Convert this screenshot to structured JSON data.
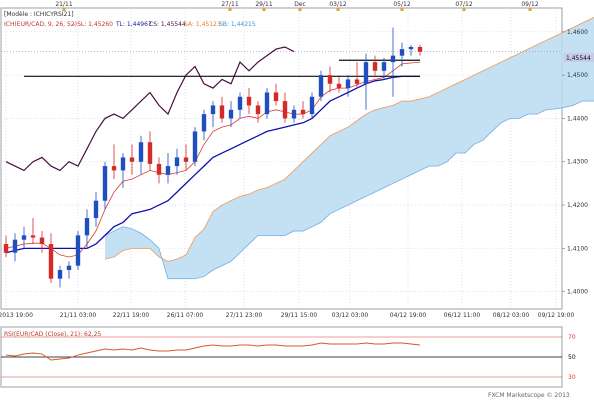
{
  "window": {
    "tab_label": "[Modèle : ICHICYRSI21]",
    "legend": {
      "instrument": "ICH(EUR/CAD, 9, 26, 52)",
      "sl": "- SL: 1,45260",
      "tl": "TL: 1,44967",
      "cs": "CS: 1,45544",
      "sa": "SA: 1,45123",
      "sb": "SB: 1,44215"
    },
    "rsi_legend": "RSI(EUR/CAD (Close), 21): 62,25",
    "watermark": "FXCM Marketscope © 2013",
    "price_tag": "1,45544"
  },
  "colors": {
    "background": "#ffffff",
    "plot_border": "#9aa0a6",
    "grid": "#c8cde3",
    "candle_bull": "#1f4fbf",
    "candle_bear": "#d62a2a",
    "tenkan_line": "#d93b3b",
    "kijun_line": "#1010b0",
    "chikou_line": "#4a0f3f",
    "cloud_fill": "#b9dcf1",
    "senkou_a": "#f0a060",
    "senkou_b": "#7fb3e6",
    "rsi_line": "#d8572a",
    "rsi_ref_mid": "#000000",
    "rsi_ref_band": "#d93b3b",
    "price_tag_bg": "#c8cbe8"
  },
  "chart_data": [
    {
      "type": "candlestick",
      "title": "[Modèle : ICHICYRSI21]",
      "ylim": [
        1.396,
        1.4655
      ],
      "y_ticks": [
        "1,4600",
        "1,4500",
        "1,4400",
        "1,4300",
        "1,4200",
        "1,4100",
        "1,4000"
      ],
      "top_dates": [
        "21/11",
        "27/11",
        "29/11",
        "Dec",
        "03/12",
        "05/12",
        "07/12",
        "09/12"
      ],
      "bottom_dates": [
        "18/11/2013 19:00",
        "21/11 03:00",
        "22/11 19:00",
        "26/11 07:00",
        "27/11 23:00",
        "29/11 15:00",
        "03/12 03:00",
        "04/12 19:00",
        "06/12 11:00",
        "08/12 03:00",
        "09/12 19:00"
      ],
      "horizontal_levels": [
        {
          "price": 1.45344,
          "from": 37,
          "to": 46
        },
        {
          "price": 1.44973,
          "from": 2,
          "to": 46
        }
      ],
      "candles": [
        {
          "o": 1.411,
          "h": 1.413,
          "l": 1.408,
          "c": 1.409
        },
        {
          "o": 1.409,
          "h": 1.4135,
          "l": 1.407,
          "c": 1.412
        },
        {
          "o": 1.412,
          "h": 1.415,
          "l": 1.41,
          "c": 1.413
        },
        {
          "o": 1.413,
          "h": 1.417,
          "l": 1.411,
          "c": 1.4125
        },
        {
          "o": 1.4125,
          "h": 1.414,
          "l": 1.409,
          "c": 1.411
        },
        {
          "o": 1.411,
          "h": 1.4135,
          "l": 1.402,
          "c": 1.403
        },
        {
          "o": 1.403,
          "h": 1.406,
          "l": 1.401,
          "c": 1.405
        },
        {
          "o": 1.405,
          "h": 1.407,
          "l": 1.403,
          "c": 1.406
        },
        {
          "o": 1.406,
          "h": 1.414,
          "l": 1.405,
          "c": 1.413
        },
        {
          "o": 1.413,
          "h": 1.419,
          "l": 1.41,
          "c": 1.417
        },
        {
          "o": 1.417,
          "h": 1.423,
          "l": 1.415,
          "c": 1.421
        },
        {
          "o": 1.421,
          "h": 1.43,
          "l": 1.419,
          "c": 1.429
        },
        {
          "o": 1.429,
          "h": 1.434,
          "l": 1.426,
          "c": 1.428
        },
        {
          "o": 1.428,
          "h": 1.432,
          "l": 1.424,
          "c": 1.431
        },
        {
          "o": 1.431,
          "h": 1.434,
          "l": 1.427,
          "c": 1.43
        },
        {
          "o": 1.43,
          "h": 1.436,
          "l": 1.427,
          "c": 1.4345
        },
        {
          "o": 1.4345,
          "h": 1.437,
          "l": 1.428,
          "c": 1.4295
        },
        {
          "o": 1.4295,
          "h": 1.431,
          "l": 1.425,
          "c": 1.427
        },
        {
          "o": 1.427,
          "h": 1.432,
          "l": 1.425,
          "c": 1.429
        },
        {
          "o": 1.429,
          "h": 1.433,
          "l": 1.427,
          "c": 1.431
        },
        {
          "o": 1.431,
          "h": 1.434,
          "l": 1.428,
          "c": 1.43
        },
        {
          "o": 1.43,
          "h": 1.438,
          "l": 1.429,
          "c": 1.437
        },
        {
          "o": 1.437,
          "h": 1.442,
          "l": 1.435,
          "c": 1.441
        },
        {
          "o": 1.441,
          "h": 1.444,
          "l": 1.438,
          "c": 1.443
        },
        {
          "o": 1.443,
          "h": 1.445,
          "l": 1.439,
          "c": 1.44
        },
        {
          "o": 1.44,
          "h": 1.444,
          "l": 1.438,
          "c": 1.442
        },
        {
          "o": 1.442,
          "h": 1.446,
          "l": 1.44,
          "c": 1.445
        },
        {
          "o": 1.445,
          "h": 1.447,
          "l": 1.441,
          "c": 1.443
        },
        {
          "o": 1.443,
          "h": 1.444,
          "l": 1.439,
          "c": 1.441
        },
        {
          "o": 1.441,
          "h": 1.447,
          "l": 1.44,
          "c": 1.446
        },
        {
          "o": 1.446,
          "h": 1.448,
          "l": 1.443,
          "c": 1.444
        },
        {
          "o": 1.444,
          "h": 1.446,
          "l": 1.439,
          "c": 1.44
        },
        {
          "o": 1.44,
          "h": 1.443,
          "l": 1.439,
          "c": 1.442
        },
        {
          "o": 1.442,
          "h": 1.444,
          "l": 1.44,
          "c": 1.441
        },
        {
          "o": 1.441,
          "h": 1.446,
          "l": 1.44,
          "c": 1.445
        },
        {
          "o": 1.445,
          "h": 1.451,
          "l": 1.444,
          "c": 1.45
        },
        {
          "o": 1.45,
          "h": 1.452,
          "l": 1.446,
          "c": 1.448
        },
        {
          "o": 1.448,
          "h": 1.45,
          "l": 1.446,
          "c": 1.447
        },
        {
          "o": 1.447,
          "h": 1.45,
          "l": 1.445,
          "c": 1.449
        },
        {
          "o": 1.449,
          "h": 1.453,
          "l": 1.447,
          "c": 1.448
        },
        {
          "o": 1.448,
          "h": 1.455,
          "l": 1.442,
          "c": 1.453
        },
        {
          "o": 1.453,
          "h": 1.4545,
          "l": 1.4495,
          "c": 1.451
        },
        {
          "o": 1.451,
          "h": 1.454,
          "l": 1.449,
          "c": 1.453
        },
        {
          "o": 1.453,
          "h": 1.461,
          "l": 1.445,
          "c": 1.4545
        },
        {
          "o": 1.4545,
          "h": 1.4575,
          "l": 1.452,
          "c": 1.456
        },
        {
          "o": 1.456,
          "h": 1.457,
          "l": 1.4545,
          "c": 1.4565
        },
        {
          "o": 1.4565,
          "h": 1.457,
          "l": 1.4545,
          "c": 1.4554
        }
      ],
      "series": [
        {
          "name": "TL",
          "start": 0,
          "values": [
            1.41,
            1.4105,
            1.411,
            1.4112,
            1.4112,
            1.41,
            1.4085,
            1.408,
            1.4085,
            1.411,
            1.414,
            1.419,
            1.423,
            1.4255,
            1.426,
            1.427,
            1.428,
            1.4275,
            1.427,
            1.4275,
            1.428,
            1.43,
            1.434,
            1.437,
            1.438,
            1.4385,
            1.44,
            1.4405,
            1.44,
            1.4415,
            1.442,
            1.4415,
            1.441,
            1.441,
            1.442,
            1.445,
            1.4465,
            1.447,
            1.447,
            1.4478,
            1.4485,
            1.449,
            1.4495,
            1.451,
            1.4526,
            1.4528,
            1.453
          ]
        },
        {
          "name": "KL",
          "start": 0,
          "values": [
            1.409,
            1.4095,
            1.41,
            1.41,
            1.41,
            1.41,
            1.41,
            1.41,
            1.41,
            1.41,
            1.411,
            1.413,
            1.415,
            1.416,
            1.418,
            1.4185,
            1.419,
            1.42,
            1.421,
            1.423,
            1.425,
            1.427,
            1.429,
            1.431,
            1.432,
            1.433,
            1.434,
            1.435,
            1.436,
            1.437,
            1.4375,
            1.438,
            1.4385,
            1.439,
            1.44,
            1.442,
            1.444,
            1.445,
            1.446,
            1.447,
            1.448,
            1.4487,
            1.449,
            1.4495,
            1.4497,
            1.4497,
            1.4497
          ]
        },
        {
          "name": "CS",
          "start": 0,
          "values": [
            1.43,
            1.429,
            1.428,
            1.43,
            1.431,
            1.429,
            1.428,
            1.43,
            1.429,
            1.433,
            1.437,
            1.44,
            1.441,
            1.44,
            1.442,
            1.444,
            1.446,
            1.443,
            1.441,
            1.446,
            1.45,
            1.452,
            1.448,
            1.447,
            1.449,
            1.448,
            1.453,
            1.451,
            1.453,
            1.4545,
            1.456,
            1.4565,
            1.4554
          ]
        },
        {
          "name": "SA",
          "start": 11,
          "values": [
            1.4075,
            1.408,
            1.4095,
            1.41,
            1.41,
            1.41,
            1.408,
            1.407,
            1.4075,
            1.4085,
            1.4125,
            1.4145,
            1.4185,
            1.42,
            1.421,
            1.422,
            1.4225,
            1.4235,
            1.424,
            1.425,
            1.426,
            1.428,
            1.43,
            1.432,
            1.434,
            1.436,
            1.437,
            1.438,
            1.4395,
            1.441,
            1.442,
            1.4425,
            1.443,
            1.444,
            1.444,
            1.4445,
            1.445,
            1.446,
            1.447,
            1.448,
            1.449,
            1.45,
            1.451,
            1.452,
            1.453,
            1.454,
            1.455,
            1.456,
            1.457,
            1.458,
            1.459,
            1.46,
            1.461,
            1.462,
            1.463,
            1.464,
            1.465,
            1.4655,
            1.466,
            1.4665,
            1.467
          ]
        },
        {
          "name": "SB",
          "start": 11,
          "values": [
            1.413,
            1.414,
            1.415,
            1.4145,
            1.4135,
            1.412,
            1.41,
            1.403,
            1.403,
            1.403,
            1.403,
            1.4035,
            1.405,
            1.406,
            1.407,
            1.409,
            1.411,
            1.413,
            1.413,
            1.413,
            1.413,
            1.414,
            1.414,
            1.415,
            1.416,
            1.418,
            1.419,
            1.42,
            1.421,
            1.422,
            1.423,
            1.424,
            1.425,
            1.426,
            1.427,
            1.428,
            1.429,
            1.429,
            1.43,
            1.432,
            1.432,
            1.434,
            1.435,
            1.437,
            1.439,
            1.44,
            1.44,
            1.441,
            1.441,
            1.442,
            1.4422,
            1.4425,
            1.443,
            1.444,
            1.444,
            1.444,
            1.444,
            1.444,
            1.444,
            1.444,
            1.444
          ]
        }
      ]
    },
    {
      "type": "line",
      "title": "RSI(EUR/CAD (Close), 21): 62,25",
      "ylim": [
        20,
        80
      ],
      "y_ticks": [
        "70",
        "50",
        "30"
      ],
      "reference_lines": [
        70,
        50,
        30
      ],
      "series": [
        {
          "name": "RSI",
          "values": [
            52,
            51,
            53,
            54,
            53,
            47,
            48,
            49,
            52,
            54,
            56,
            58,
            57,
            58,
            57,
            59,
            57,
            56,
            56,
            57,
            57,
            59,
            61,
            62,
            61,
            61,
            62,
            62,
            61,
            62,
            62,
            61,
            61,
            61,
            62,
            64,
            63,
            63,
            63,
            63,
            64,
            63,
            63,
            64,
            64,
            63,
            62
          ]
        }
      ]
    }
  ]
}
